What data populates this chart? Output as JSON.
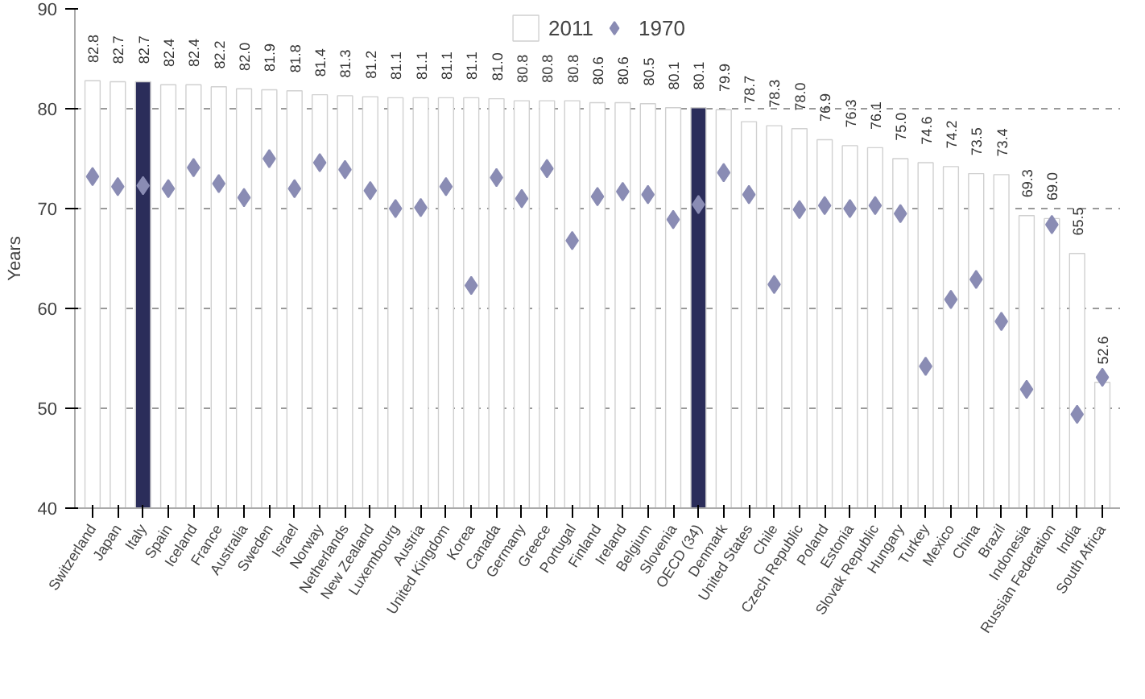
{
  "chart_data": {
    "type": "bar",
    "ylabel": "Years",
    "categories": [
      "Switzerland",
      "Japan",
      "Italy",
      "Spain",
      "Iceland",
      "France",
      "Australia",
      "Sweden",
      "Israel",
      "Norway",
      "Netherlands",
      "New Zealand",
      "Luxembourg",
      "Austria",
      "United Kingdom",
      "Korea",
      "Canada",
      "Germany",
      "Greece",
      "Portugal",
      "Finland",
      "Ireland",
      "Belgium",
      "Slovenia",
      "OECD (34)",
      "Denmark",
      "United States",
      "Chile",
      "Czech Republic",
      "Poland",
      "Estonia",
      "Slovak Republic",
      "Hungary",
      "Turkey",
      "Mexico",
      "China",
      "Brazil",
      "Indonesia",
      "Russian Federation",
      "India",
      "South Africa"
    ],
    "series": [
      {
        "name": "2011",
        "color": "#d0d0d0",
        "value_labels": [
          "82.8",
          "82.7",
          "82.7",
          "82.4",
          "82.4",
          "82.2",
          "82.0",
          "81.9",
          "81.8",
          "81.4",
          "81.3",
          "81.2",
          "81.1",
          "81.1",
          "81.1",
          "81.1",
          "81.0",
          "80.8",
          "80.8",
          "80.8",
          "80.6",
          "80.6",
          "80.5",
          "80.1",
          "80.1",
          "79.9",
          "78.7",
          "78.3",
          "78.0",
          "76.9",
          "76.3",
          "76.1",
          "75.0",
          "74.6",
          "74.2",
          "73.5",
          "73.4",
          "69.3",
          "69.0",
          "65.5",
          "52.6"
        ],
        "colors": [
          "#ffffff",
          "#ffffff",
          "#2b2d5a",
          "#ffffff",
          "#ffffff",
          "#ffffff",
          "#ffffff",
          "#ffffff",
          "#ffffff",
          "#ffffff",
          "#ffffff",
          "#ffffff",
          "#ffffff",
          "#ffffff",
          "#ffffff",
          "#ffffff",
          "#ffffff",
          "#ffffff",
          "#ffffff",
          "#ffffff",
          "#ffffff",
          "#ffffff",
          "#ffffff",
          "#ffffff",
          "#2b2d5a",
          "#ffffff",
          "#ffffff",
          "#ffffff",
          "#ffffff",
          "#ffffff",
          "#ffffff",
          "#ffffff",
          "#ffffff",
          "#ffffff",
          "#ffffff",
          "#ffffff",
          "#ffffff",
          "#ffffff",
          "#ffffff",
          "#ffffff",
          "#ffffff"
        ],
        "values": [
          82.8,
          82.7,
          82.7,
          82.4,
          82.4,
          82.2,
          82.0,
          81.9,
          81.8,
          81.4,
          81.3,
          81.2,
          81.1,
          81.1,
          81.1,
          81.1,
          81.0,
          80.8,
          80.8,
          80.8,
          80.6,
          80.6,
          80.5,
          80.1,
          80.1,
          79.9,
          78.7,
          78.3,
          78.0,
          76.9,
          76.3,
          76.1,
          75.0,
          74.6,
          74.2,
          73.5,
          73.4,
          69.3,
          69.0,
          65.5,
          52.6
        ]
      },
      {
        "name": "1970",
        "type": "scatter",
        "marker": "diamond",
        "color": "#8a8cb4",
        "values": [
          73.2,
          72.2,
          72.3,
          72.0,
          74.1,
          72.5,
          71.1,
          75.0,
          72.0,
          74.6,
          73.9,
          71.8,
          70.0,
          70.1,
          72.2,
          62.3,
          73.1,
          71.0,
          74.0,
          66.8,
          71.2,
          71.7,
          71.4,
          68.9,
          70.4,
          73.6,
          71.4,
          62.4,
          69.9,
          70.3,
          70.0,
          70.3,
          69.5,
          54.2,
          60.9,
          62.9,
          58.7,
          51.9,
          68.4,
          49.4,
          53.1
        ]
      }
    ],
    "ylim": [
      40,
      90
    ],
    "yticks": [
      40,
      50,
      60,
      70,
      80,
      90
    ],
    "grid": "y",
    "legend": "top"
  }
}
